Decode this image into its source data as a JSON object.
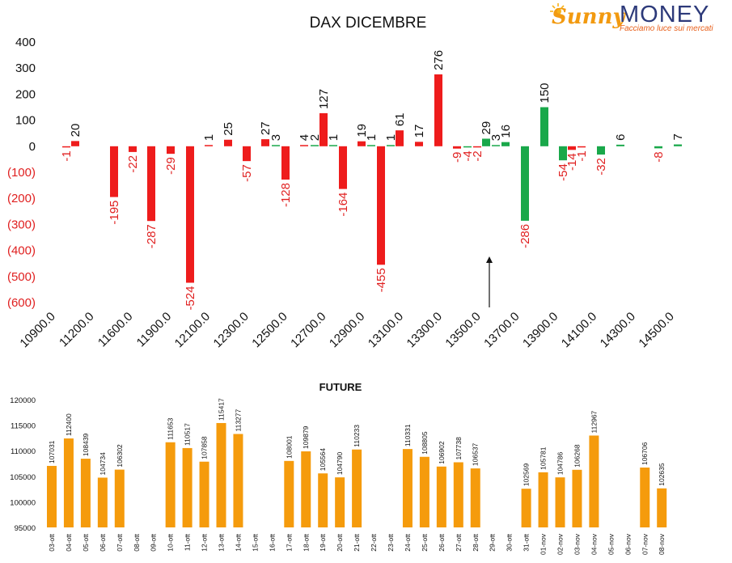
{
  "logo": {
    "brand_a": "Sunny",
    "brand_b": "MONEY",
    "tagline": "Facciamo luce sui mercati"
  },
  "colors": {
    "red": "#ee1c1c",
    "green": "#19a84a",
    "orange": "#f59b0c",
    "axis_red": "#e02020",
    "text": "#111111"
  },
  "chart_data": [
    {
      "type": "bar",
      "title": "DAX DICEMBRE",
      "ylim": [
        -600,
        400
      ],
      "yticks": [
        400,
        300,
        200,
        100,
        0,
        -100,
        -200,
        -300,
        -400,
        -500,
        -600
      ],
      "ytick_labels": [
        "400",
        "300",
        "200",
        "100",
        "0",
        "(100)",
        "(200)",
        "(300)",
        "(400)",
        "(500)",
        "(600)"
      ],
      "x_tick_labels": [
        "10900.0",
        "11200.0",
        "11600.0",
        "11900.0",
        "12100.0",
        "12300.0",
        "12500.0",
        "12700.0",
        "12900.0",
        "13100.0",
        "13300.0",
        "13500.0",
        "13700.0",
        "13900.0",
        "14100.0",
        "14300.0",
        "14500.0"
      ],
      "bars": [
        {
          "value": -1,
          "label": "-1",
          "color": "red"
        },
        {
          "value": 20,
          "label": "20",
          "color": "red"
        },
        {
          "value": -195,
          "label": "-195",
          "color": "red"
        },
        {
          "value": -22,
          "label": "-22",
          "color": "red"
        },
        {
          "value": -287,
          "label": "-287",
          "color": "red"
        },
        {
          "value": -29,
          "label": "-29",
          "color": "red"
        },
        {
          "value": -524,
          "label": "-524",
          "color": "red"
        },
        {
          "value": 1,
          "label": "1",
          "color": "red"
        },
        {
          "value": 25,
          "label": "25",
          "color": "red"
        },
        {
          "value": -57,
          "label": "-57",
          "color": "red"
        },
        {
          "value": 27,
          "label": "27",
          "color": "red"
        },
        {
          "value": 3,
          "label": "3",
          "color": "green"
        },
        {
          "value": -128,
          "label": "-128",
          "color": "red"
        },
        {
          "value": 4,
          "label": "4",
          "color": "red"
        },
        {
          "value": 2,
          "label": "2",
          "color": "green"
        },
        {
          "value": 127,
          "label": "127",
          "color": "red"
        },
        {
          "value": 1,
          "label": "1",
          "color": "green"
        },
        {
          "value": -164,
          "label": "-164",
          "color": "red"
        },
        {
          "value": 19,
          "label": "19",
          "color": "red"
        },
        {
          "value": 1,
          "label": "1",
          "color": "green"
        },
        {
          "value": -455,
          "label": "-455",
          "color": "red"
        },
        {
          "value": 1,
          "label": "1",
          "color": "green"
        },
        {
          "value": 61,
          "label": "61",
          "color": "red"
        },
        {
          "value": 17,
          "label": "17",
          "color": "red"
        },
        {
          "value": 276,
          "label": "276",
          "color": "red"
        },
        {
          "value": -9,
          "label": "-9",
          "color": "red"
        },
        {
          "value": -4,
          "label": "-4",
          "color": "green"
        },
        {
          "value": -2,
          "label": "-2",
          "color": "red"
        },
        {
          "value": 29,
          "label": "29",
          "color": "green"
        },
        {
          "value": 3,
          "label": "3",
          "color": "green"
        },
        {
          "value": 16,
          "label": "16",
          "color": "green"
        },
        {
          "value": -286,
          "label": "-286",
          "color": "green"
        },
        {
          "value": 150,
          "label": "150",
          "color": "green"
        },
        {
          "value": -54,
          "label": "-54",
          "color": "green"
        },
        {
          "value": -14,
          "label": "-14",
          "color": "red"
        },
        {
          "value": -1,
          "label": "-1",
          "color": "red"
        },
        {
          "value": -32,
          "label": "-32",
          "color": "green"
        },
        {
          "value": 6,
          "label": "6",
          "color": "green"
        },
        {
          "value": -8,
          "label": "-8",
          "color": "green"
        },
        {
          "value": 7,
          "label": "7",
          "color": "green"
        }
      ],
      "bar_centers": [
        82,
        93,
        141,
        164,
        187,
        211,
        235,
        258,
        282,
        305,
        328,
        341,
        353,
        376,
        389,
        400,
        412,
        424,
        447,
        459,
        471,
        483,
        494,
        518,
        542,
        565,
        578,
        590,
        601,
        613,
        625,
        649,
        673,
        696,
        707,
        719,
        743,
        767,
        814,
        838
      ],
      "annotation": "arrow",
      "legend": "none",
      "grid": false
    },
    {
      "type": "bar",
      "title": "FUTURE",
      "ylim": [
        95000,
        120000
      ],
      "yticks": [
        120000,
        115000,
        110000,
        105000,
        100000,
        95000
      ],
      "categories": [
        "03-ott",
        "04-ott",
        "05-ott",
        "06-ott",
        "07-ott",
        "08-ott",
        "09-ott",
        "10-ott",
        "11-ott",
        "12-ott",
        "13-ott",
        "14-ott",
        "15-ott",
        "16-ott",
        "17-ott",
        "18-ott",
        "19-ott",
        "20-ott",
        "21-ott",
        "22-ott",
        "23-ott",
        "24-ott",
        "25-ott",
        "26-ott",
        "27-ott",
        "28-ott",
        "29-ott",
        "30-ott",
        "31-ott",
        "01-nov",
        "02-nov",
        "03-nov",
        "04-nov",
        "05-nov",
        "06-nov",
        "07-nov",
        "08-nov"
      ],
      "values": [
        107031,
        112400,
        108439,
        104734,
        106302,
        null,
        null,
        111653,
        110517,
        107858,
        115417,
        113277,
        null,
        null,
        108001,
        109879,
        105564,
        104790,
        110233,
        null,
        null,
        110331,
        108805,
        106902,
        107738,
        106537,
        null,
        null,
        102569,
        105781,
        104786,
        106268,
        112967,
        null,
        null,
        106706,
        102635
      ],
      "value_labels": [
        "107031",
        "112400",
        "108439",
        "104734",
        "106302",
        "",
        "",
        "111653",
        "110517",
        "107858",
        "115417",
        "113277",
        "",
        "",
        "108001",
        "109879",
        "105564",
        "104790",
        "110233",
        "",
        "",
        "110331",
        "108805",
        "106902",
        "107738",
        "106537",
        "",
        "",
        "102569",
        "105781",
        "104786",
        "106268",
        "112967",
        "",
        "",
        "106706",
        "102635"
      ],
      "legend": "none",
      "grid": false
    }
  ]
}
